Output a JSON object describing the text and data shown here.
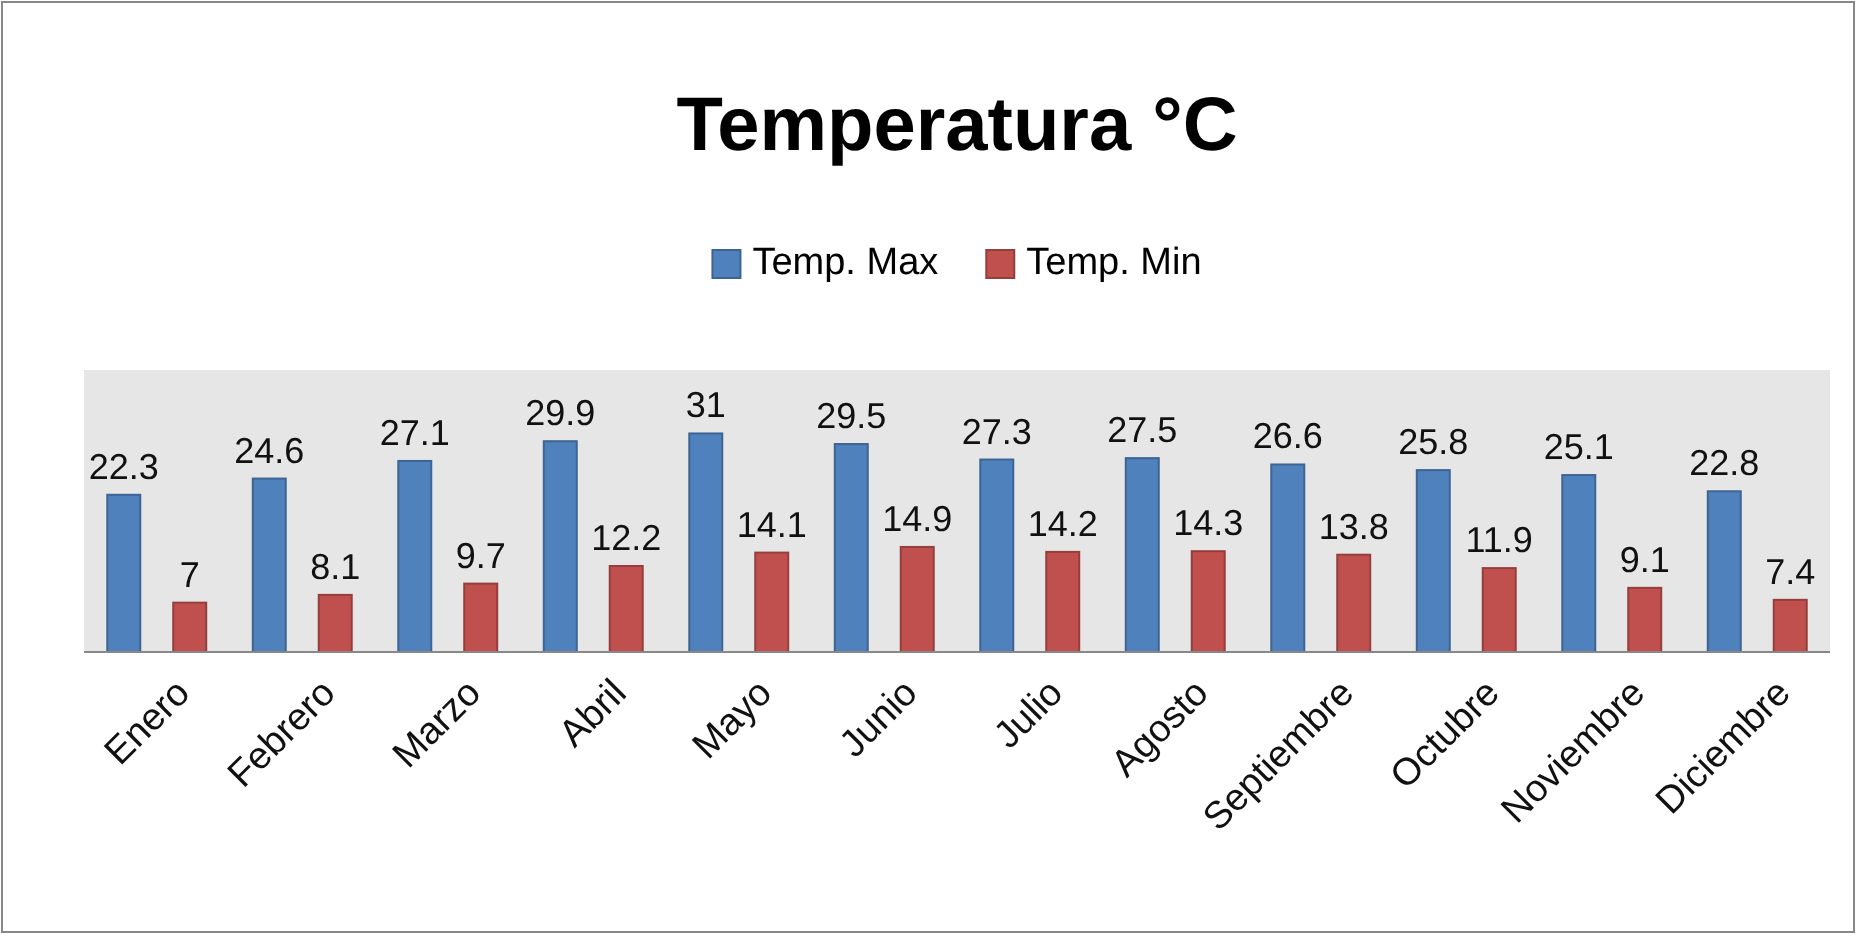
{
  "chart_data": {
    "type": "bar",
    "title": "Temperatura °C",
    "categories": [
      "Enero",
      "Febrero",
      "Marzo",
      "Abril",
      "Mayo",
      "Junio",
      "Julio",
      "Agosto",
      "Septiembre",
      "Octubre",
      "Noviembre",
      "Diciembre"
    ],
    "series": [
      {
        "name": "Temp. Max",
        "color": "#4f81bd",
        "values": [
          22.3,
          24.6,
          27.1,
          29.9,
          31,
          29.5,
          27.3,
          27.5,
          26.6,
          25.8,
          25.1,
          22.8
        ]
      },
      {
        "name": "Temp. Min",
        "color": "#c0504d",
        "values": [
          7,
          8.1,
          9.7,
          12.2,
          14.1,
          14.9,
          14.2,
          14.3,
          13.8,
          11.9,
          9.1,
          7.4
        ]
      }
    ],
    "ylim": [
      0,
      40
    ],
    "data_labels": true,
    "legend": "top",
    "tick_labels": "x"
  }
}
